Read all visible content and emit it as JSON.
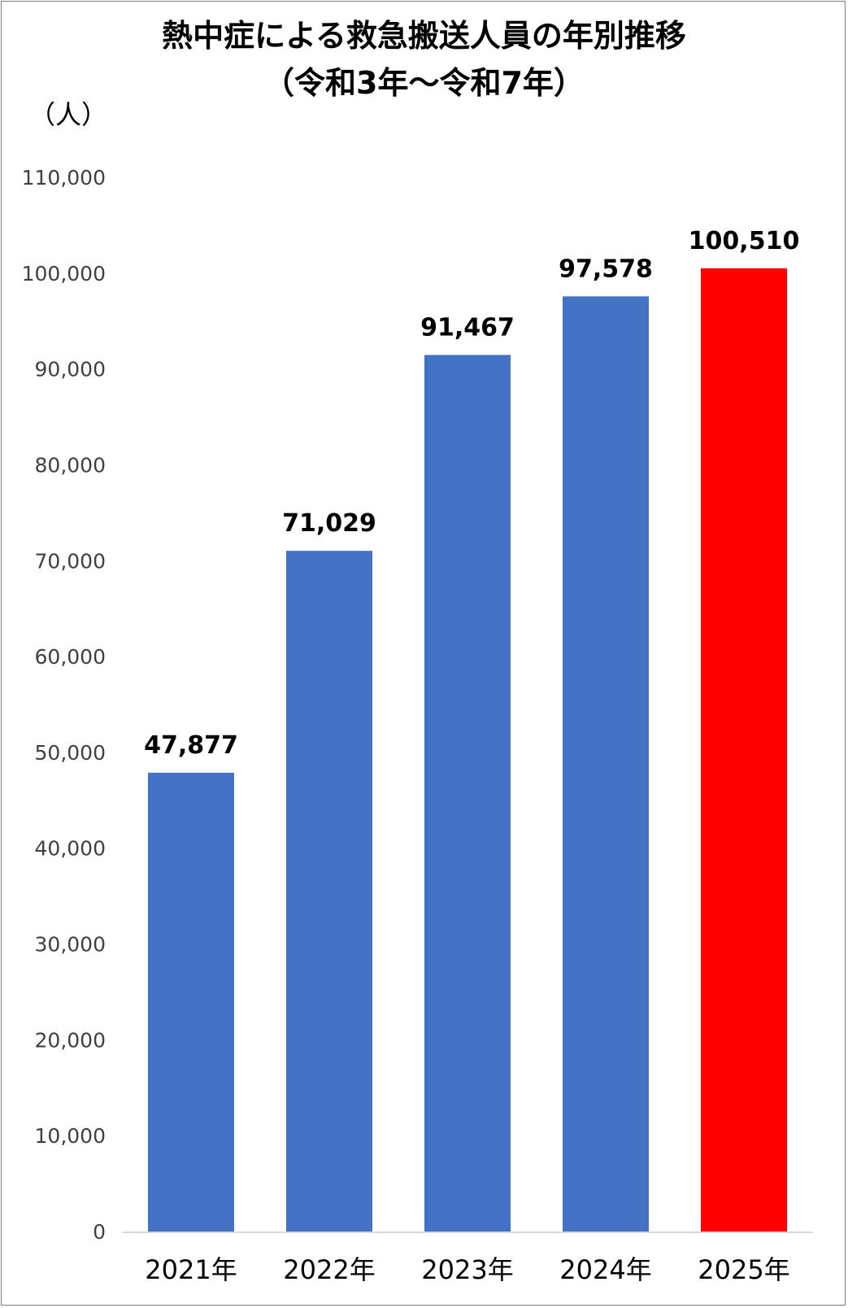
{
  "chart_data": {
    "type": "bar",
    "title": "熱中症による救急搬送人員の年別推移",
    "subtitle": "（令和3年～令和7年）",
    "ylabel": "（人）",
    "xlabel": "",
    "categories": [
      "2021年",
      "2022年",
      "2023年",
      "2024年",
      "2025年"
    ],
    "values": [
      47877,
      71029,
      91467,
      97578,
      100510
    ],
    "data_labels": [
      "47,877",
      "71,029",
      "91,467",
      "97,578",
      "100,510"
    ],
    "bar_colors": [
      "#4472C4",
      "#4472C4",
      "#4472C4",
      "#4472C4",
      "#FF0000"
    ],
    "ylim": [
      0,
      110000
    ],
    "yticks": [
      0,
      10000,
      20000,
      30000,
      40000,
      50000,
      60000,
      70000,
      80000,
      90000,
      100000,
      110000
    ],
    "ytick_labels": [
      "0",
      "10,000",
      "20,000",
      "30,000",
      "40,000",
      "50,000",
      "60,000",
      "70,000",
      "80,000",
      "90,000",
      "100,000",
      "110,000"
    ],
    "grid": false,
    "legend": "none",
    "axis_color": "#D9D9D9"
  }
}
